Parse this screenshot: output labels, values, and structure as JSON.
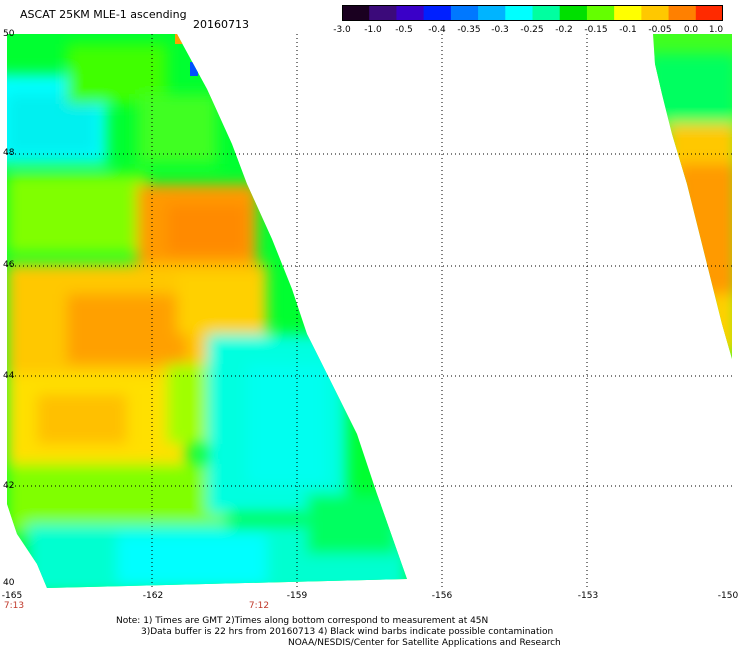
{
  "header": {
    "title": "ASCAT 25KM MLE-1 ascending",
    "date": "20160713"
  },
  "colorbar": {
    "labels": [
      "-3.0",
      "-1.0",
      "-0.5",
      "-0.4",
      "-0.35",
      "-0.3",
      "-0.25",
      "-0.2",
      "-0.15",
      "-0.1",
      "-0.05",
      "0.0",
      "1.0"
    ],
    "colors": [
      "#1a0020",
      "#3b0a7a",
      "#3a00c8",
      "#0020ff",
      "#0078ff",
      "#00b4ff",
      "#00ffff",
      "#00ffa0",
      "#00e000",
      "#64ff00",
      "#ffff00",
      "#ffc800",
      "#ff8000",
      "#ff2a00"
    ]
  },
  "axes": {
    "lat_labels": [
      "50",
      "48",
      "46",
      "44",
      "42",
      "40"
    ],
    "lon_labels": [
      "-165",
      "-162",
      "-159",
      "-156",
      "-153",
      "-150"
    ],
    "time_labels": [
      "7:13",
      "7:12"
    ]
  },
  "notes": {
    "line1": "Note: 1) Times are GMT 2)Times along bottom correspond to measurement at 45N",
    "line2": "3)Data buffer is 22 hrs from 20160713 4) Black wind barbs indicate possible contamination",
    "line3": "NOAA/NESDIS/Center for Satellite Applications and Research"
  },
  "palette": {
    "cyan": "#00ffff",
    "teal": "#00f0c8",
    "green": "#00ff40",
    "lime": "#80ff00",
    "yellow": "#ffff00",
    "light_orange": "#ffc800",
    "orange": "#ff9a00",
    "blue": "#0050ff"
  }
}
